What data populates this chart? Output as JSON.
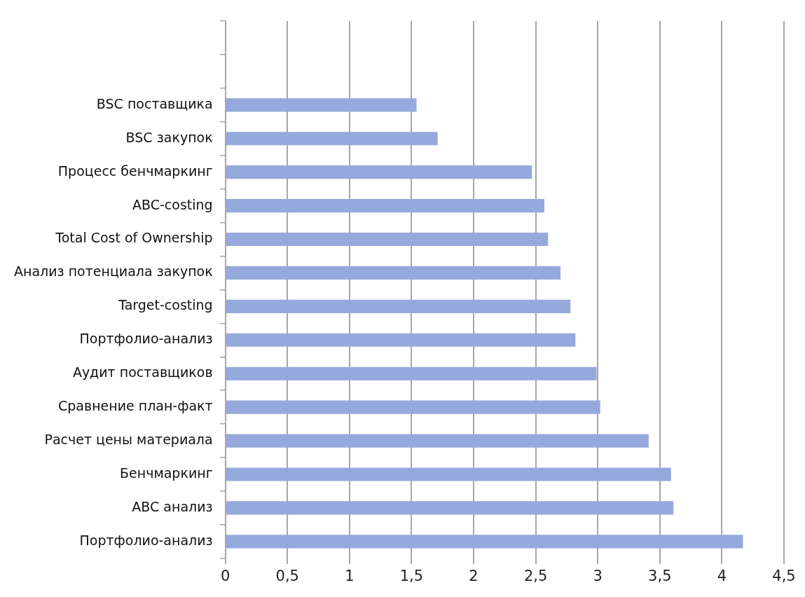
{
  "chart_data": {
    "type": "bar",
    "orientation": "horizontal",
    "categories": [
      null,
      null,
      "BSC поставщика",
      "BSC закупок",
      "Процесс бенчмаркинг",
      "ABC-costing",
      "Total Cost of Ownership",
      "Анализ потенциала закупок",
      "Target-costing",
      "Портфолио-анализ",
      "Аудит поставщиков",
      "Сравнение план-факт",
      "Расчет цены материала",
      "Бенчмаркинг",
      "ABC анализ",
      "Портфолио-анализ"
    ],
    "values": [
      null,
      null,
      1.54,
      1.71,
      2.47,
      2.57,
      2.6,
      2.7,
      2.78,
      2.82,
      2.99,
      3.02,
      3.41,
      3.59,
      3.61,
      4.17
    ],
    "color": "#95a9dc",
    "xlim": [
      0,
      4.5
    ],
    "xticks": [
      0,
      {
        "value": 0.5,
        "label": "0,5"
      },
      1,
      {
        "value": 1.5,
        "label": "1,5"
      },
      2,
      {
        "value": 2.5,
        "label": "2,5"
      },
      3,
      {
        "value": 3.5,
        "label": "3,5"
      },
      4,
      {
        "value": 4.5,
        "label": "4,5"
      }
    ],
    "grid": "x",
    "legend": false
  }
}
